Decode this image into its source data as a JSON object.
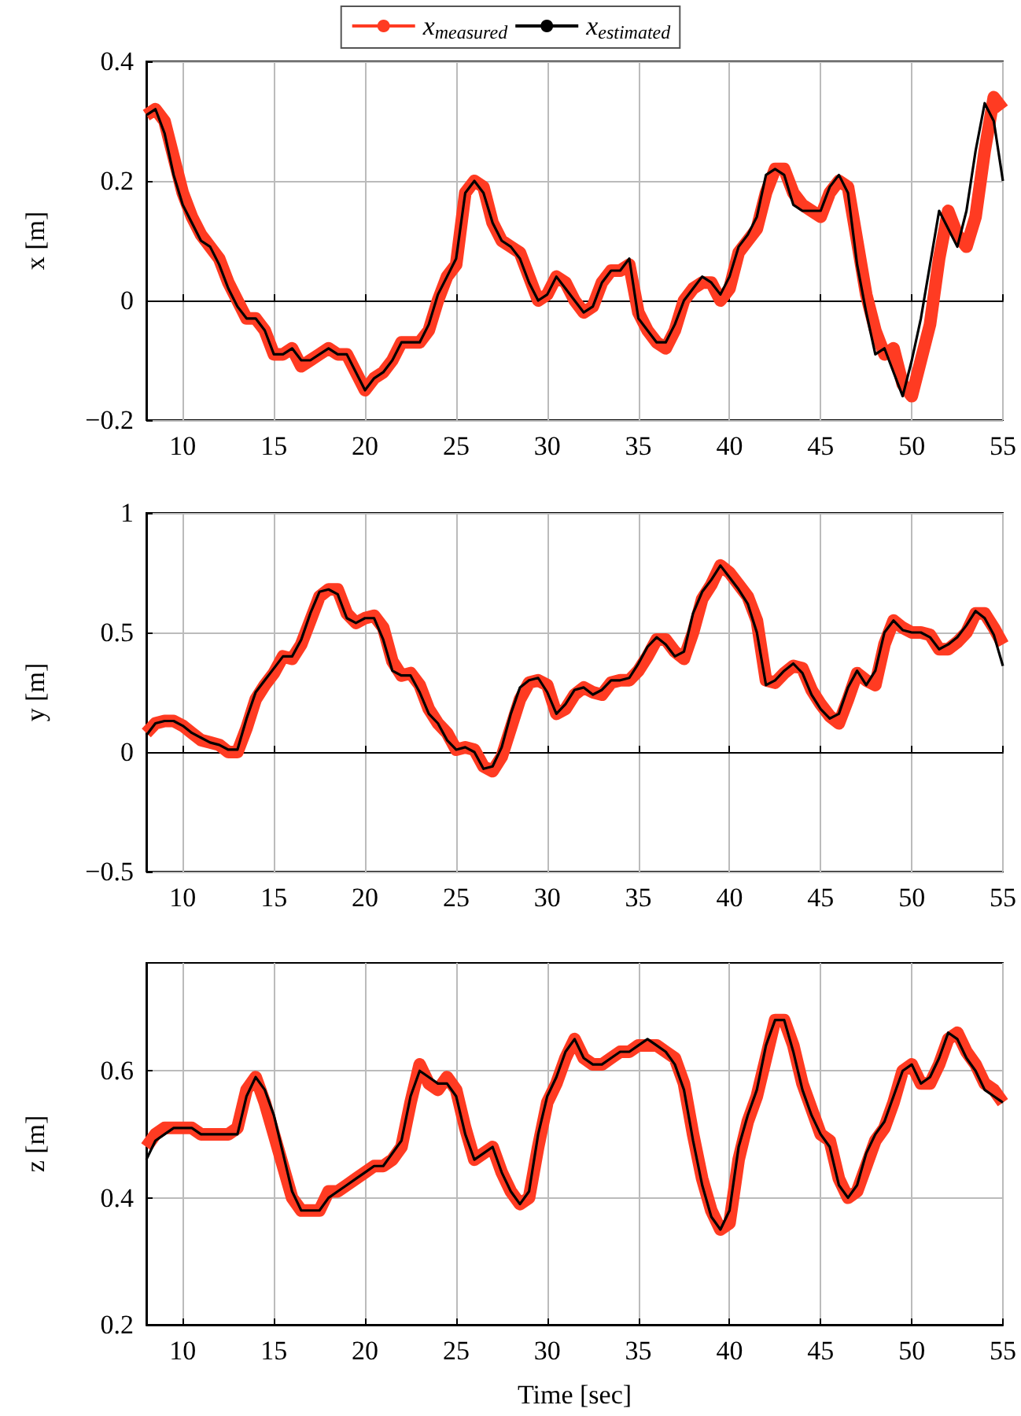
{
  "chart_data": [
    {
      "type": "line",
      "ylabel": "x [m]",
      "legend": "top",
      "grid": true,
      "marker": "none",
      "xlim": [
        8,
        55
      ],
      "xticks": [
        10,
        15,
        20,
        25,
        30,
        35,
        40,
        45,
        50,
        55
      ],
      "ylim": [
        -0.2,
        0.4
      ],
      "yticks": [
        {
          "value": -0.2,
          "label": "−0.2"
        },
        0,
        0.2,
        0.4
      ],
      "x": [
        8,
        8.5,
        9,
        9.5,
        10,
        10.5,
        11,
        11.5,
        12,
        12.5,
        13,
        13.5,
        14,
        14.5,
        15,
        15.5,
        16,
        16.5,
        17,
        17.5,
        18,
        18.5,
        19,
        19.5,
        20,
        20.5,
        21,
        21.5,
        22,
        22.5,
        23,
        23.5,
        24,
        24.5,
        25,
        25.5,
        26,
        26.5,
        27,
        27.5,
        28,
        28.5,
        29,
        29.5,
        30,
        30.5,
        31,
        31.5,
        32,
        32.5,
        33,
        33.5,
        34,
        34.5,
        35,
        35.5,
        36,
        36.5,
        37,
        37.5,
        38,
        38.5,
        39,
        39.5,
        40,
        40.5,
        41,
        41.5,
        42,
        42.5,
        43,
        43.5,
        44,
        44.5,
        45,
        45.5,
        46,
        46.5,
        47,
        47.5,
        48,
        48.5,
        49,
        49.5,
        50,
        50.5,
        51,
        51.5,
        52,
        52.5,
        53,
        53.5,
        54,
        54.5,
        55
      ],
      "series": [
        {
          "name": "x$_{measured}$",
          "color": "#ff3b22",
          "values": [
            0.31,
            0.32,
            0.3,
            0.24,
            0.18,
            0.14,
            0.11,
            0.09,
            0.07,
            0.03,
            0,
            -0.03,
            -0.03,
            -0.05,
            -0.09,
            -0.09,
            -0.08,
            -0.11,
            -0.1,
            -0.09,
            -0.08,
            -0.09,
            -0.09,
            -0.12,
            -0.15,
            -0.13,
            -0.12,
            -0.1,
            -0.07,
            -0.07,
            -0.07,
            -0.05,
            0,
            0.04,
            0.06,
            0.18,
            0.2,
            0.19,
            0.13,
            0.1,
            0.09,
            0.08,
            0.04,
            0,
            0.01,
            0.04,
            0.03,
            0,
            -0.02,
            -0.01,
            0.03,
            0.05,
            0.05,
            0.06,
            -0.02,
            -0.05,
            -0.07,
            -0.08,
            -0.05,
            0,
            0.02,
            0.03,
            0.03,
            0,
            0.02,
            0.08,
            0.1,
            0.12,
            0.18,
            0.22,
            0.22,
            0.18,
            0.16,
            0.15,
            0.14,
            0.18,
            0.2,
            0.19,
            0.1,
            0.01,
            -0.05,
            -0.09,
            -0.08,
            -0.14,
            -0.16,
            -0.1,
            -0.04,
            0.07,
            0.15,
            0.11,
            0.09,
            0.14,
            0.25,
            0.34,
            0.32
          ]
        },
        {
          "name": "x$_{estimated}$",
          "color": "#000000",
          "values": [
            0.31,
            0.32,
            0.28,
            0.21,
            0.16,
            0.13,
            0.1,
            0.09,
            0.06,
            0.02,
            -0.01,
            -0.03,
            -0.03,
            -0.05,
            -0.09,
            -0.09,
            -0.08,
            -0.1,
            -0.1,
            -0.09,
            -0.08,
            -0.09,
            -0.09,
            -0.12,
            -0.15,
            -0.13,
            -0.12,
            -0.1,
            -0.07,
            -0.07,
            -0.07,
            -0.04,
            0.01,
            0.04,
            0.07,
            0.18,
            0.2,
            0.18,
            0.13,
            0.1,
            0.09,
            0.07,
            0.03,
            0,
            0.01,
            0.04,
            0.02,
            0,
            -0.02,
            -0.01,
            0.03,
            0.05,
            0.05,
            0.07,
            -0.03,
            -0.05,
            -0.07,
            -0.07,
            -0.04,
            0,
            0.02,
            0.04,
            0.03,
            0.01,
            0.04,
            0.09,
            0.11,
            0.14,
            0.21,
            0.22,
            0.21,
            0.16,
            0.15,
            0.15,
            0.15,
            0.19,
            0.21,
            0.18,
            0.06,
            -0.02,
            -0.09,
            -0.08,
            -0.12,
            -0.16,
            -0.1,
            -0.03,
            0.06,
            0.15,
            0.12,
            0.09,
            0.15,
            0.25,
            0.33,
            0.3,
            0.2
          ]
        }
      ]
    },
    {
      "type": "line",
      "ylabel": "y [m]",
      "legend": false,
      "grid": true,
      "marker": "none",
      "xlim": [
        8,
        55
      ],
      "xticks": [
        10,
        15,
        20,
        25,
        30,
        35,
        40,
        45,
        50,
        55
      ],
      "ylim": [
        -0.5,
        1
      ],
      "yticks": [
        {
          "value": -0.5,
          "label": "−0.5"
        },
        0,
        0.5,
        1
      ],
      "x": [
        8,
        8.5,
        9,
        9.5,
        10,
        10.5,
        11,
        11.5,
        12,
        12.5,
        13,
        13.5,
        14,
        14.5,
        15,
        15.5,
        16,
        16.5,
        17,
        17.5,
        18,
        18.5,
        19,
        19.5,
        20,
        20.5,
        21,
        21.5,
        22,
        22.5,
        23,
        23.5,
        24,
        24.5,
        25,
        25.5,
        26,
        26.5,
        27,
        27.5,
        28,
        28.5,
        29,
        29.5,
        30,
        30.5,
        31,
        31.5,
        32,
        32.5,
        33,
        33.5,
        34,
        34.5,
        35,
        35.5,
        36,
        36.5,
        37,
        37.5,
        38,
        38.5,
        39,
        39.5,
        40,
        40.5,
        41,
        41.5,
        42,
        42.5,
        43,
        43.5,
        44,
        44.5,
        45,
        45.5,
        46,
        46.5,
        47,
        47.5,
        48,
        48.5,
        49,
        49.5,
        50,
        50.5,
        51,
        51.5,
        52,
        52.5,
        53,
        53.5,
        54,
        54.5,
        55
      ],
      "series": [
        {
          "color": "#ff3b22",
          "values": [
            0.08,
            0.12,
            0.13,
            0.13,
            0.11,
            0.08,
            0.05,
            0.04,
            0.03,
            0,
            0,
            0.1,
            0.22,
            0.28,
            0.33,
            0.4,
            0.39,
            0.45,
            0.55,
            0.65,
            0.68,
            0.68,
            0.58,
            0.54,
            0.56,
            0.57,
            0.52,
            0.38,
            0.32,
            0.33,
            0.28,
            0.18,
            0.12,
            0.08,
            0.01,
            0.02,
            0.01,
            -0.06,
            -0.08,
            -0.02,
            0.1,
            0.22,
            0.29,
            0.3,
            0.28,
            0.16,
            0.18,
            0.24,
            0.27,
            0.25,
            0.24,
            0.29,
            0.3,
            0.3,
            0.34,
            0.4,
            0.47,
            0.47,
            0.42,
            0.39,
            0.5,
            0.64,
            0.7,
            0.78,
            0.75,
            0.7,
            0.65,
            0.55,
            0.3,
            0.29,
            0.33,
            0.36,
            0.35,
            0.26,
            0.2,
            0.15,
            0.12,
            0.22,
            0.33,
            0.3,
            0.28,
            0.45,
            0.55,
            0.52,
            0.5,
            0.5,
            0.49,
            0.43,
            0.43,
            0.46,
            0.5,
            0.58,
            0.58,
            0.52,
            0.45
          ]
        },
        {
          "color": "#000000",
          "values": [
            0.07,
            0.12,
            0.13,
            0.13,
            0.11,
            0.08,
            0.06,
            0.04,
            0.03,
            0.01,
            0.01,
            0.14,
            0.25,
            0.3,
            0.35,
            0.4,
            0.4,
            0.47,
            0.58,
            0.67,
            0.68,
            0.66,
            0.56,
            0.54,
            0.56,
            0.56,
            0.47,
            0.34,
            0.32,
            0.32,
            0.25,
            0.16,
            0.12,
            0.05,
            0.01,
            0.02,
            0,
            -0.07,
            -0.06,
            0.02,
            0.16,
            0.27,
            0.3,
            0.31,
            0.25,
            0.16,
            0.2,
            0.26,
            0.27,
            0.24,
            0.26,
            0.3,
            0.3,
            0.31,
            0.37,
            0.44,
            0.48,
            0.45,
            0.4,
            0.42,
            0.58,
            0.67,
            0.72,
            0.78,
            0.73,
            0.68,
            0.62,
            0.5,
            0.28,
            0.3,
            0.34,
            0.37,
            0.33,
            0.24,
            0.18,
            0.14,
            0.16,
            0.27,
            0.34,
            0.28,
            0.34,
            0.5,
            0.55,
            0.51,
            0.5,
            0.5,
            0.48,
            0.43,
            0.45,
            0.48,
            0.53,
            0.59,
            0.56,
            0.49,
            0.36
          ]
        }
      ]
    },
    {
      "type": "line",
      "ylabel": "z [m]",
      "xlabel": "Time [sec]",
      "legend": false,
      "grid": true,
      "marker": "none",
      "xlim": [
        8,
        55
      ],
      "xticks": [
        10,
        15,
        20,
        25,
        30,
        35,
        40,
        45,
        50,
        55
      ],
      "ylim": [
        0.2,
        0.77
      ],
      "yticks": [
        0.2,
        0.4,
        0.6
      ],
      "x": [
        8,
        8.5,
        9,
        9.5,
        10,
        10.5,
        11,
        11.5,
        12,
        12.5,
        13,
        13.5,
        14,
        14.5,
        15,
        15.5,
        16,
        16.5,
        17,
        17.5,
        18,
        18.5,
        19,
        19.5,
        20,
        20.5,
        21,
        21.5,
        22,
        22.5,
        23,
        23.5,
        24,
        24.5,
        25,
        25.5,
        26,
        26.5,
        27,
        27.5,
        28,
        28.5,
        29,
        29.5,
        30,
        30.5,
        31,
        31.5,
        32,
        32.5,
        33,
        33.5,
        34,
        34.5,
        35,
        35.5,
        36,
        36.5,
        37,
        37.5,
        38,
        38.5,
        39,
        39.5,
        40,
        40.5,
        41,
        41.5,
        42,
        42.5,
        43,
        43.5,
        44,
        44.5,
        45,
        45.5,
        46,
        46.5,
        47,
        47.5,
        48,
        48.5,
        49,
        49.5,
        50,
        50.5,
        51,
        51.5,
        52,
        52.5,
        53,
        53.5,
        54,
        54.5,
        55
      ],
      "series": [
        {
          "color": "#ff3b22",
          "values": [
            0.48,
            0.5,
            0.51,
            0.51,
            0.51,
            0.51,
            0.5,
            0.5,
            0.5,
            0.5,
            0.51,
            0.57,
            0.59,
            0.55,
            0.5,
            0.45,
            0.4,
            0.38,
            0.38,
            0.38,
            0.41,
            0.41,
            0.42,
            0.43,
            0.44,
            0.45,
            0.45,
            0.46,
            0.48,
            0.55,
            0.61,
            0.58,
            0.57,
            0.59,
            0.57,
            0.51,
            0.46,
            0.47,
            0.48,
            0.44,
            0.41,
            0.39,
            0.4,
            0.48,
            0.55,
            0.58,
            0.62,
            0.65,
            0.62,
            0.61,
            0.61,
            0.62,
            0.63,
            0.63,
            0.64,
            0.64,
            0.64,
            0.63,
            0.62,
            0.58,
            0.5,
            0.43,
            0.38,
            0.35,
            0.36,
            0.46,
            0.52,
            0.56,
            0.62,
            0.68,
            0.68,
            0.64,
            0.58,
            0.54,
            0.5,
            0.49,
            0.43,
            0.4,
            0.41,
            0.45,
            0.49,
            0.51,
            0.55,
            0.6,
            0.61,
            0.58,
            0.58,
            0.61,
            0.65,
            0.66,
            0.63,
            0.61,
            0.58,
            0.57,
            0.55
          ]
        },
        {
          "color": "#000000",
          "values": [
            0.46,
            0.49,
            0.5,
            0.51,
            0.51,
            0.51,
            0.5,
            0.5,
            0.5,
            0.5,
            0.5,
            0.56,
            0.59,
            0.57,
            0.53,
            0.47,
            0.41,
            0.38,
            0.38,
            0.38,
            0.4,
            0.41,
            0.42,
            0.43,
            0.44,
            0.45,
            0.45,
            0.47,
            0.49,
            0.56,
            0.6,
            0.59,
            0.58,
            0.58,
            0.56,
            0.5,
            0.46,
            0.47,
            0.48,
            0.44,
            0.41,
            0.39,
            0.41,
            0.5,
            0.56,
            0.59,
            0.63,
            0.65,
            0.62,
            0.61,
            0.61,
            0.62,
            0.63,
            0.63,
            0.64,
            0.65,
            0.64,
            0.63,
            0.61,
            0.57,
            0.49,
            0.42,
            0.37,
            0.35,
            0.38,
            0.48,
            0.53,
            0.57,
            0.64,
            0.68,
            0.68,
            0.63,
            0.57,
            0.53,
            0.5,
            0.48,
            0.42,
            0.4,
            0.42,
            0.47,
            0.5,
            0.52,
            0.56,
            0.6,
            0.61,
            0.58,
            0.59,
            0.62,
            0.66,
            0.65,
            0.62,
            0.6,
            0.57,
            0.56,
            0.55
          ]
        }
      ]
    }
  ]
}
